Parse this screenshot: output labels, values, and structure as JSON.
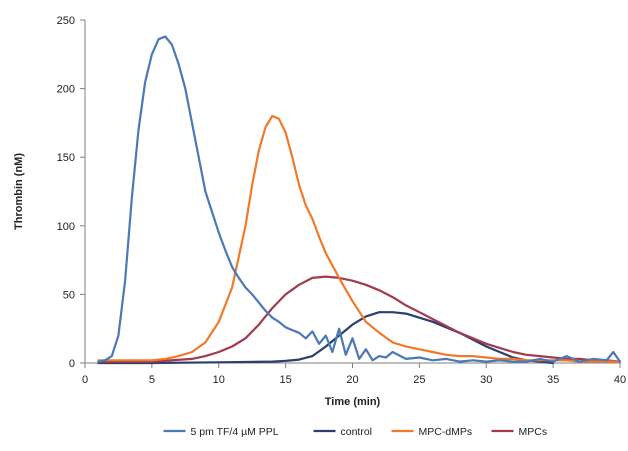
{
  "chart_data": {
    "type": "line",
    "xlabel": "Time (min)",
    "ylabel": "Thrombin (nM)",
    "xlim": [
      0,
      40
    ],
    "ylim": [
      0,
      250
    ],
    "x_ticks": [
      0,
      5,
      10,
      15,
      20,
      25,
      30,
      35,
      40
    ],
    "y_ticks": [
      0,
      50,
      100,
      150,
      200,
      250
    ],
    "grid": false,
    "legend_position": "bottom",
    "series": [
      {
        "name": "5 pm TF/4 µM PPL",
        "color": "#4a78b8",
        "x": [
          1,
          1.5,
          2,
          2.5,
          3,
          3.5,
          4,
          4.5,
          5,
          5.5,
          6,
          6.5,
          7,
          7.5,
          8,
          8.5,
          9,
          9.5,
          10,
          10.5,
          11,
          11.5,
          12,
          12.5,
          13,
          13.5,
          14,
          14.5,
          15,
          15.5,
          16,
          16.5,
          17,
          17.5,
          18,
          18.5,
          19,
          19.5,
          20,
          20.5,
          21,
          21.5,
          22,
          22.5,
          23,
          24,
          25,
          26,
          27,
          28,
          29,
          30,
          31,
          32,
          33,
          34,
          35,
          36,
          37,
          38,
          39,
          39.5,
          40
        ],
        "values": [
          1,
          2,
          5,
          20,
          60,
          120,
          170,
          205,
          225,
          236,
          238,
          232,
          218,
          200,
          175,
          150,
          125,
          110,
          95,
          82,
          70,
          62,
          55,
          50,
          44,
          38,
          33,
          30,
          26,
          24,
          22,
          18,
          23,
          14,
          20,
          8,
          25,
          6,
          18,
          3,
          10,
          2,
          5,
          4,
          8,
          3,
          4,
          2,
          3,
          1,
          2,
          1,
          2,
          1,
          1,
          3,
          1,
          5,
          1,
          3,
          2,
          8,
          1
        ]
      },
      {
        "name": "control",
        "color": "#2b3f6e",
        "x": [
          1,
          5,
          10,
          14,
          15,
          16,
          17,
          18,
          19,
          20,
          21,
          22,
          23,
          24,
          25,
          26,
          27,
          28,
          29,
          30,
          31,
          32,
          33,
          34,
          35
        ],
        "values": [
          0,
          0,
          0.5,
          1,
          1.5,
          2.5,
          5,
          12,
          20,
          28,
          34,
          37,
          37,
          36,
          33,
          30,
          26,
          22,
          17,
          12,
          8,
          4,
          2,
          1,
          0
        ]
      },
      {
        "name": "MPC-dMPs",
        "color": "#f07a2a",
        "x": [
          1,
          5,
          6,
          7,
          8,
          9,
          10,
          11,
          12,
          12.5,
          13,
          13.5,
          14,
          14.5,
          15,
          15.5,
          16,
          16.5,
          17,
          17.5,
          18,
          19,
          20,
          21,
          22,
          23,
          24,
          25,
          26,
          27,
          28,
          29,
          30,
          31,
          32,
          33,
          34,
          35,
          36,
          37,
          38,
          39,
          40
        ],
        "values": [
          2,
          2,
          3,
          5,
          8,
          15,
          30,
          55,
          100,
          130,
          155,
          172,
          180,
          178,
          168,
          150,
          130,
          115,
          105,
          92,
          80,
          62,
          45,
          30,
          22,
          15,
          12,
          10,
          8,
          6,
          5,
          5,
          4,
          3,
          3,
          2,
          2,
          2,
          2,
          1,
          1,
          1,
          1
        ]
      },
      {
        "name": "MPCs",
        "color": "#a23a4a",
        "x": [
          1,
          5,
          8,
          9,
          10,
          11,
          12,
          13,
          14,
          15,
          16,
          17,
          18,
          19,
          20,
          21,
          22,
          23,
          24,
          25,
          26,
          27,
          28,
          29,
          30,
          31,
          32,
          33,
          34,
          35,
          36,
          37,
          38,
          39,
          40
        ],
        "values": [
          1,
          1,
          3,
          5,
          8,
          12,
          18,
          28,
          40,
          50,
          57,
          62,
          63,
          62,
          60,
          57,
          53,
          48,
          42,
          37,
          32,
          27,
          22,
          18,
          14,
          11,
          8,
          6,
          5,
          4,
          3,
          3,
          2,
          2,
          1
        ]
      }
    ]
  }
}
